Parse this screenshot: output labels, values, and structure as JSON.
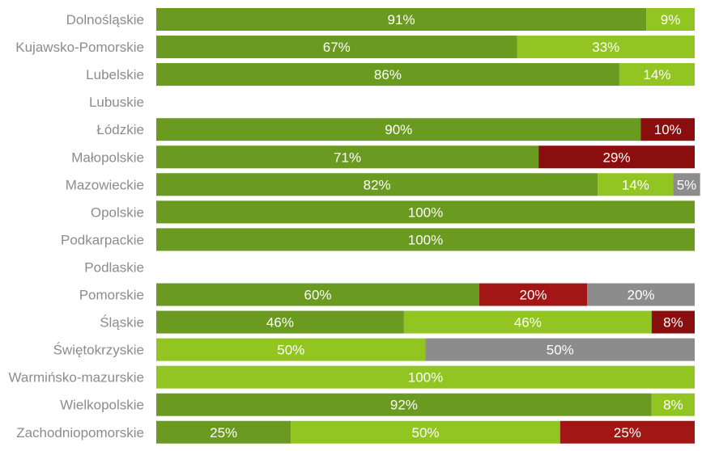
{
  "chart_data": {
    "type": "bar",
    "orientation": "horizontal",
    "stacked": true,
    "normalized_percent": true,
    "grid": false,
    "legend": "none",
    "categories": [
      "Dolnośląskie",
      "Kujawsko-Pomorskie",
      "Lubelskie",
      "Lubuskie",
      "Łódzkie",
      "Małopolskie",
      "Mazowieckie",
      "Opolskie",
      "Podkarpackie",
      "Podlaskie",
      "Pomorskie",
      "Śląskie",
      "Świętokrzyskie",
      "Warmińsko-mazurskie",
      "Wielkopolskie",
      "Zachodniopomorskie"
    ],
    "series": [
      {
        "color": "#6a9a1f",
        "values": [
          91,
          67,
          86,
          0,
          90,
          71,
          82,
          100,
          100,
          0,
          60,
          46,
          0,
          0,
          92,
          25
        ]
      },
      {
        "color": "#92c422",
        "values": [
          9,
          33,
          14,
          0,
          0,
          0,
          14,
          0,
          0,
          0,
          0,
          46,
          50,
          100,
          8,
          50
        ]
      },
      {
        "color": "#8b0e0e",
        "values": [
          0,
          0,
          0,
          0,
          10,
          29,
          0,
          0,
          0,
          0,
          0,
          8,
          0,
          0,
          0,
          0
        ]
      },
      {
        "color": "#a31616",
        "values": [
          0,
          0,
          0,
          0,
          0,
          0,
          0,
          0,
          0,
          0,
          20,
          0,
          0,
          0,
          0,
          25
        ]
      },
      {
        "color": "#8c8c8c",
        "values": [
          0,
          0,
          0,
          0,
          0,
          0,
          5,
          0,
          0,
          0,
          20,
          0,
          50,
          0,
          0,
          0
        ]
      }
    ],
    "xlim": [
      0,
      100
    ]
  }
}
